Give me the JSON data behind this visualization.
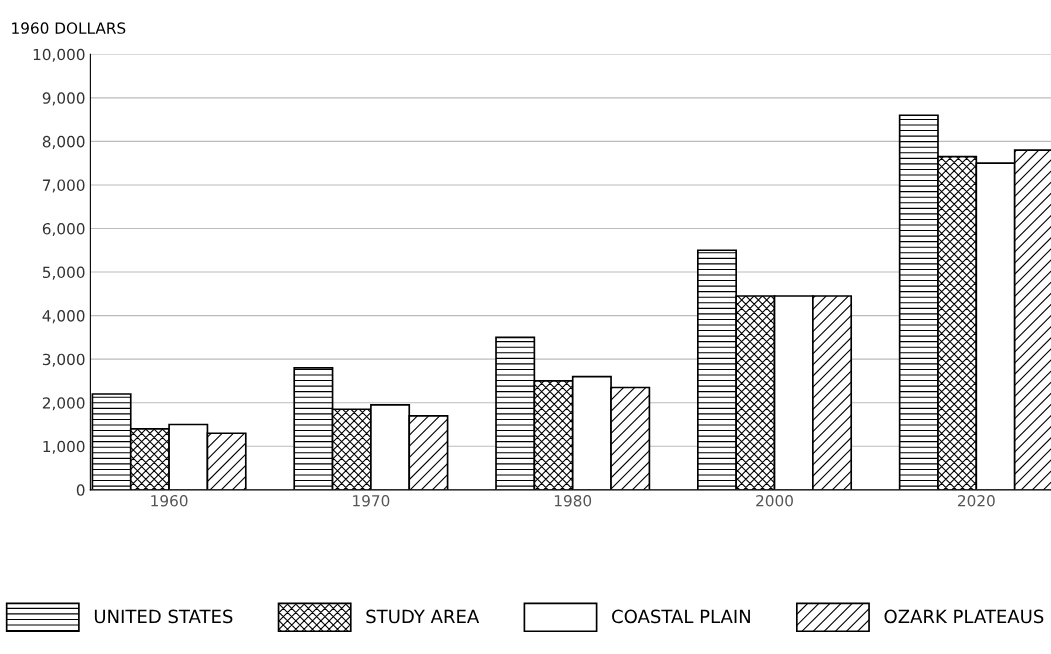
{
  "chart_data": {
    "type": "bar",
    "ylabel": "1960 DOLLARS",
    "categories": [
      "1960",
      "1970",
      "1980",
      "2000",
      "2020"
    ],
    "series": [
      {
        "name": "UNITED STATES",
        "color": "#000000",
        "values": [
          2200,
          2800,
          3500,
          5500,
          8600
        ]
      },
      {
        "name": "STUDY AREA",
        "color": "#000000",
        "values": [
          1400,
          1850,
          2500,
          4450,
          7650
        ]
      },
      {
        "name": "COASTAL PLAIN",
        "color": "#000000",
        "values": [
          1500,
          1950,
          2600,
          4450,
          7500
        ]
      },
      {
        "name": "OZARK PLATEAUS",
        "color": "#000000",
        "values": [
          1300,
          1700,
          2350,
          4450,
          7800
        ]
      }
    ],
    "ylim": [
      0,
      10000
    ],
    "yticks": [
      0,
      {
        "value": 1000,
        "label": "1,000"
      },
      {
        "value": 2000,
        "label": "2,000"
      },
      {
        "value": 3000,
        "label": "3,000"
      },
      {
        "value": 4000,
        "label": "4,000"
      },
      {
        "value": 5000,
        "label": "5,000"
      },
      {
        "value": 6000,
        "label": "6,000"
      },
      {
        "value": 7000,
        "label": "7,000"
      },
      {
        "value": 8000,
        "label": "8,000"
      },
      {
        "value": 9000,
        "label": "9,000"
      },
      {
        "value": 10000,
        "label": "10,000"
      }
    ],
    "grid": "y",
    "legend": "bottom"
  }
}
